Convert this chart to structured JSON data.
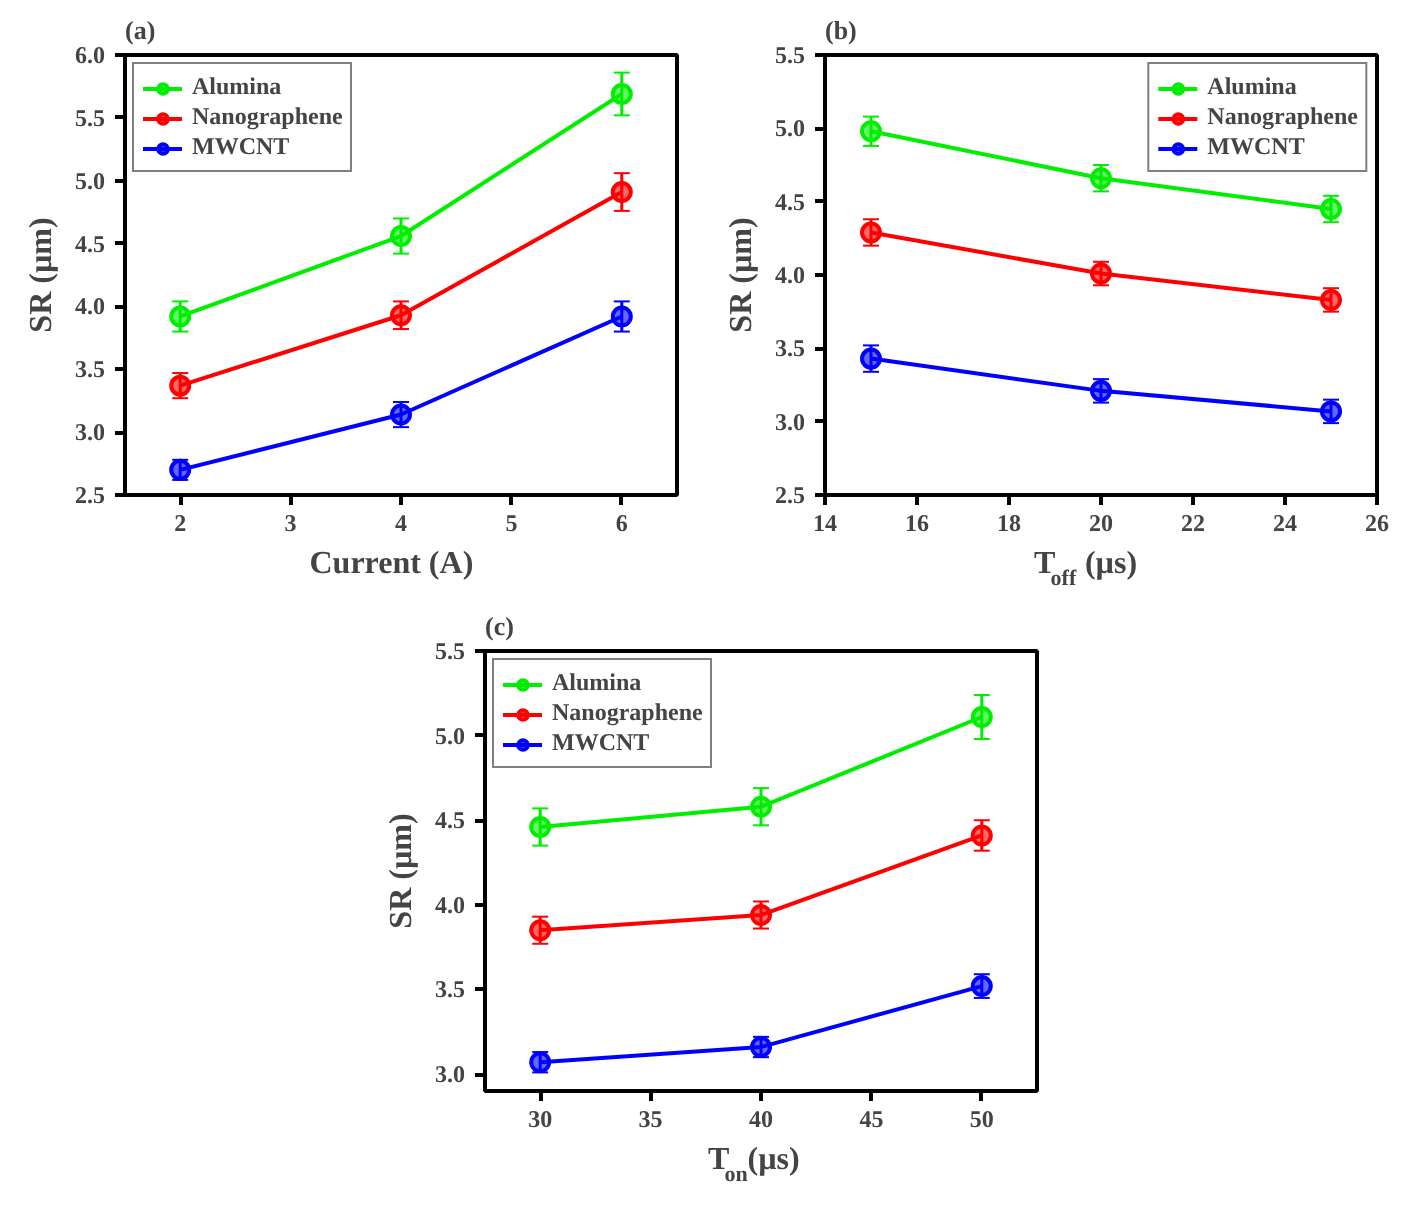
{
  "chart_data": [
    {
      "type": "line",
      "title": "(a)",
      "xlabel": "Current (A)",
      "ylabel": "SR (µm)",
      "x": [
        2,
        4,
        6
      ],
      "xlim": [
        1.5,
        6.5
      ],
      "xticks": [
        2,
        3,
        4,
        5,
        6
      ],
      "ylim": [
        2.5,
        6.0
      ],
      "yticks": [
        {
          "value": 2.5,
          "label": "2.5"
        },
        {
          "value": 3.0,
          "label": "3.0"
        },
        {
          "value": 3.5,
          "label": "3.5"
        },
        {
          "value": 4.0,
          "label": "4.0"
        },
        {
          "value": 4.5,
          "label": "4.5"
        },
        {
          "value": 5.0,
          "label": "5.0"
        },
        {
          "value": 5.5,
          "label": "5.5"
        },
        {
          "value": 6.0,
          "label": "6.0"
        }
      ],
      "grid": false,
      "legend": "top left",
      "marker": "circle",
      "line_style": "solid",
      "series": [
        {
          "name": "Alumina",
          "color": "#00ee00",
          "values": [
            3.92,
            4.56,
            5.69
          ],
          "errors": [
            0.12,
            0.14,
            0.17
          ]
        },
        {
          "name": "Nanographene",
          "color": "#ff0000",
          "values": [
            3.37,
            3.93,
            4.91
          ],
          "errors": [
            0.1,
            0.11,
            0.15
          ]
        },
        {
          "name": "MWCNT",
          "color": "#0000ff",
          "values": [
            2.7,
            3.14,
            3.92
          ],
          "errors": [
            0.08,
            0.1,
            0.12
          ]
        }
      ]
    },
    {
      "type": "line",
      "title": "(b)",
      "xlabel": "T$_{off}$ (µs)",
      "ylabel": "SR (µm)",
      "x": [
        15,
        20,
        25
      ],
      "xlim": [
        14,
        26
      ],
      "xticks": [
        14,
        16,
        18,
        20,
        22,
        24,
        26
      ],
      "ylim": [
        2.5,
        5.5
      ],
      "yticks": [
        {
          "value": 2.5,
          "label": "2.5"
        },
        {
          "value": 3.0,
          "label": "3.0"
        },
        {
          "value": 3.5,
          "label": "3.5"
        },
        {
          "value": 4.0,
          "label": "4.0"
        },
        {
          "value": 4.5,
          "label": "4.5"
        },
        {
          "value": 5.0,
          "label": "5.0"
        },
        {
          "value": 5.5,
          "label": "5.5"
        }
      ],
      "grid": false,
      "legend": "top right",
      "marker": "circle",
      "line_style": "solid",
      "series": [
        {
          "name": "Alumina",
          "color": "#00ee00",
          "values": [
            4.98,
            4.66,
            4.45
          ],
          "errors": [
            0.1,
            0.09,
            0.09
          ]
        },
        {
          "name": "Nanographene",
          "color": "#ff0000",
          "values": [
            4.29,
            4.01,
            3.83
          ],
          "errors": [
            0.09,
            0.08,
            0.08
          ]
        },
        {
          "name": "MWCNT",
          "color": "#0000ff",
          "values": [
            3.43,
            3.21,
            3.07
          ],
          "errors": [
            0.09,
            0.08,
            0.08
          ]
        }
      ]
    },
    {
      "type": "line",
      "title": "(c)",
      "xlabel": "T$_{on}$(µs)",
      "ylabel": "SR (µm)",
      "x": [
        30,
        40,
        50
      ],
      "xlim": [
        27.5,
        52.5
      ],
      "xticks": [
        30,
        35,
        40,
        45,
        50
      ],
      "ylim": [
        2.9,
        5.5
      ],
      "yticks": [
        {
          "value": 3.0,
          "label": "3.0"
        },
        {
          "value": 3.5,
          "label": "3.5"
        },
        {
          "value": 4.0,
          "label": "4.0"
        },
        {
          "value": 4.5,
          "label": "4.5"
        },
        {
          "value": 5.0,
          "label": "5.0"
        },
        {
          "value": 5.5,
          "label": "5.5"
        }
      ],
      "grid": false,
      "legend": "top left",
      "marker": "circle",
      "line_style": "solid",
      "series": [
        {
          "name": "Alumina",
          "color": "#00ee00",
          "values": [
            4.46,
            4.58,
            5.11
          ],
          "errors": [
            0.11,
            0.11,
            0.13
          ]
        },
        {
          "name": "Nanographene",
          "color": "#ff0000",
          "values": [
            3.85,
            3.94,
            4.41
          ],
          "errors": [
            0.08,
            0.08,
            0.09
          ]
        },
        {
          "name": "MWCNT",
          "color": "#0000ff",
          "values": [
            3.07,
            3.16,
            3.52
          ],
          "errors": [
            0.06,
            0.06,
            0.07
          ]
        }
      ]
    }
  ]
}
